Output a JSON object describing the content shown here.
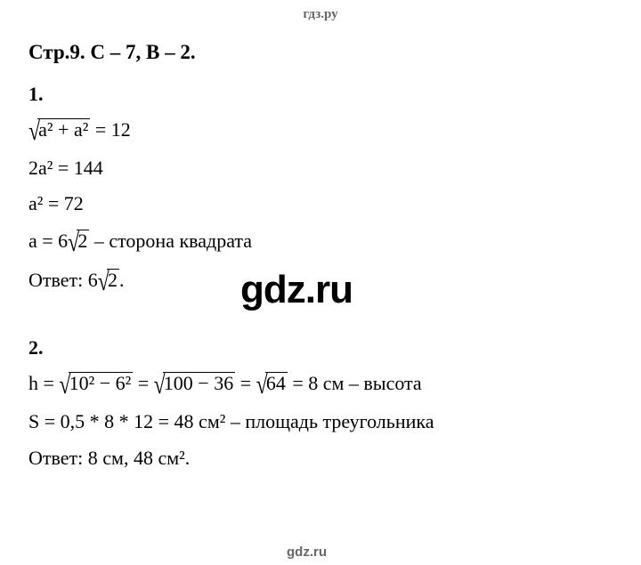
{
  "watermark_top": "гдз.ру",
  "watermark_center": "gdz.ru",
  "watermark_bottom": "gdz.ru",
  "heading": "Стр.9. С – 7, В – 2.",
  "problem1": {
    "num": "1.",
    "line1_radicand": "a² + a²",
    "line1_eq": " = 12",
    "line2": "2a² = 144",
    "line3": "a² = 72",
    "line4_pre": "a = 6",
    "line4_rad": "2",
    "line4_post": " – сторона квадрата",
    "answer_pre": "Ответ: 6",
    "answer_rad": "2",
    "answer_post": "."
  },
  "problem2": {
    "num": "2.",
    "line1_pre": "h = ",
    "line1_rad1": "10² − 6²",
    "line1_eq1": " = ",
    "line1_rad2": "100 − 36",
    "line1_eq2": " = ",
    "line1_rad3": "64",
    "line1_post": " = 8 см – высота",
    "line2": "S = 0,5 * 8 * 12 = 48 см² – площадь треугольника",
    "answer": "Ответ: 8 см, 48 см²."
  },
  "colors": {
    "text": "#000000",
    "watermark_gray": "#666666",
    "background": "#ffffff"
  },
  "fonts": {
    "body": "Times New Roman",
    "watermark": "Arial"
  }
}
